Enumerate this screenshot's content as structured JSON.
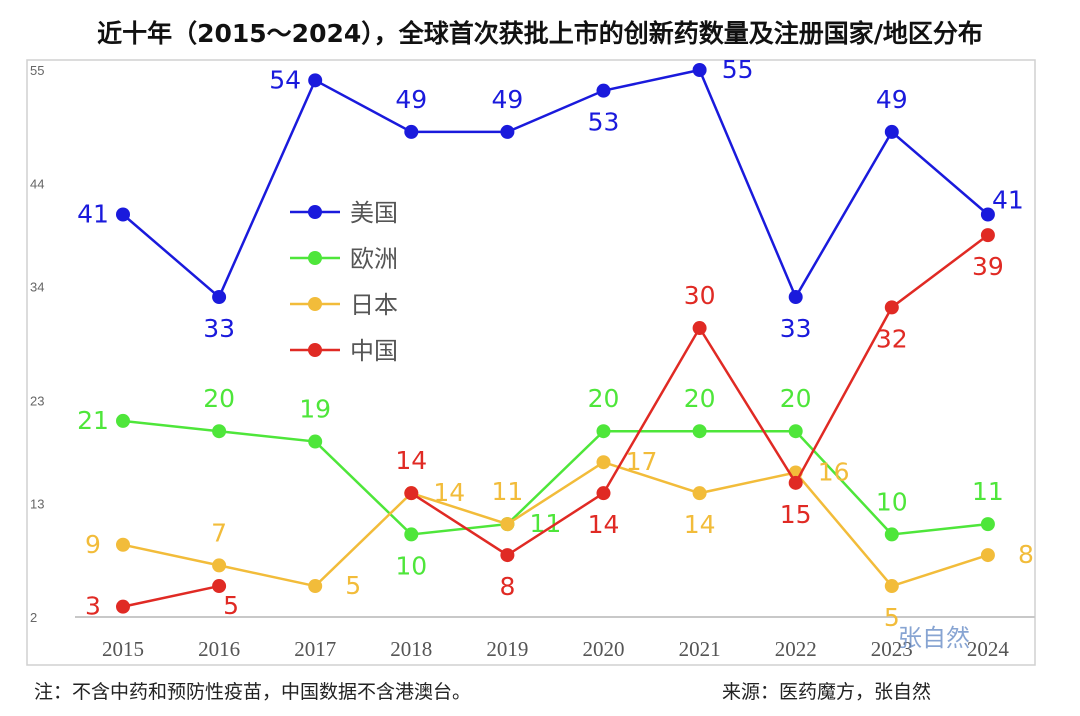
{
  "title": "近十年（2015～2024），全球首次获批上市的创新药数量及注册国家/地区分布",
  "note": "注：不含中药和预防性疫苗，中国数据不含港澳台。",
  "source": "来源：医药魔方，张自然",
  "watermark": "张自然",
  "chart_data": {
    "type": "line",
    "title": "近十年（2015～2024），全球首次获批上市的创新药数量及注册国家/地区分布",
    "xlabel": "",
    "ylabel": "",
    "categories": [
      "2015",
      "2016",
      "2017",
      "2018",
      "2019",
      "2020",
      "2021",
      "2022",
      "2023",
      "2024"
    ],
    "yticks": [
      2,
      13,
      23,
      34,
      44,
      55
    ],
    "ylim": [
      2,
      55
    ],
    "grid": false,
    "legend_position": "upper-left",
    "series": [
      {
        "name": "美国",
        "color": "#1a1adc",
        "values": [
          41,
          33,
          54,
          49,
          49,
          53,
          55,
          33,
          49,
          41
        ]
      },
      {
        "name": "欧洲",
        "color": "#4ee63a",
        "values": [
          21,
          20,
          19,
          10,
          11,
          20,
          20,
          20,
          10,
          11
        ]
      },
      {
        "name": "日本",
        "color": "#f2bc3a",
        "values": [
          9,
          7,
          5,
          14,
          11,
          17,
          14,
          16,
          5,
          8
        ]
      },
      {
        "name": "中国",
        "color": "#e02a24",
        "values": [
          3,
          5,
          null,
          14,
          8,
          14,
          30,
          15,
          32,
          39
        ]
      }
    ]
  }
}
